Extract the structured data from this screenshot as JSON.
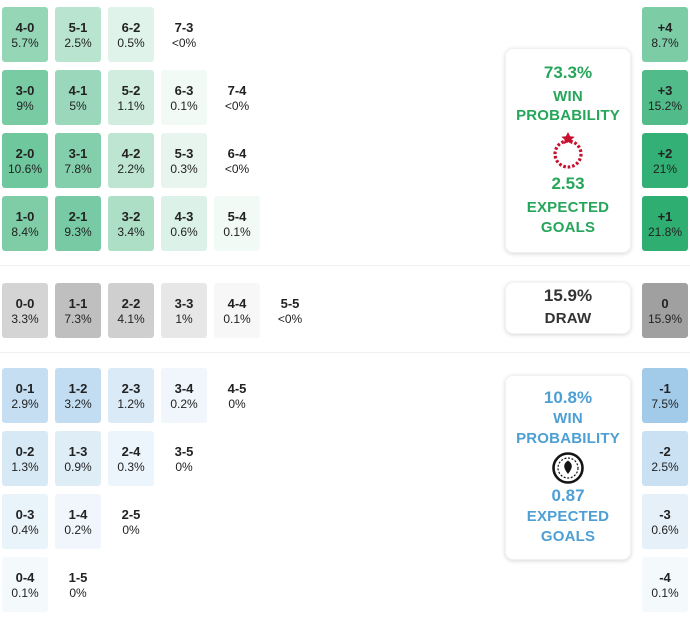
{
  "chart_data": {
    "type": "heatmap",
    "title": "Correct score probability matrix with win probability and expected goals",
    "colors": {
      "home_base": "#2fae72",
      "draw_base": "#a0a0a0",
      "away_base": "#8fc0e5",
      "home_text": "#26a65a",
      "away_text": "#4d9fd4",
      "draw_text": "#333333",
      "cell_text": "#222222"
    },
    "scales": {
      "home_max": 21.8,
      "draw_max": 15.9,
      "away_max": 10.8
    },
    "home_rows": [
      [
        {
          "score": "4-0",
          "pct": "5.7%",
          "value": 5.7
        },
        {
          "score": "5-1",
          "pct": "2.5%",
          "value": 2.5
        },
        {
          "score": "6-2",
          "pct": "0.5%",
          "value": 0.5
        },
        {
          "score": "7-3",
          "pct": "<0%",
          "value": 0
        }
      ],
      [
        {
          "score": "3-0",
          "pct": "9%",
          "value": 9
        },
        {
          "score": "4-1",
          "pct": "5%",
          "value": 5
        },
        {
          "score": "5-2",
          "pct": "1.1%",
          "value": 1.1
        },
        {
          "score": "6-3",
          "pct": "0.1%",
          "value": 0.1
        },
        {
          "score": "7-4",
          "pct": "<0%",
          "value": 0
        }
      ],
      [
        {
          "score": "2-0",
          "pct": "10.6%",
          "value": 10.6
        },
        {
          "score": "3-1",
          "pct": "7.8%",
          "value": 7.8
        },
        {
          "score": "4-2",
          "pct": "2.2%",
          "value": 2.2
        },
        {
          "score": "5-3",
          "pct": "0.3%",
          "value": 0.3
        },
        {
          "score": "6-4",
          "pct": "<0%",
          "value": 0
        }
      ],
      [
        {
          "score": "1-0",
          "pct": "8.4%",
          "value": 8.4
        },
        {
          "score": "2-1",
          "pct": "9.3%",
          "value": 9.3
        },
        {
          "score": "3-2",
          "pct": "3.4%",
          "value": 3.4
        },
        {
          "score": "4-3",
          "pct": "0.6%",
          "value": 0.6
        },
        {
          "score": "5-4",
          "pct": "0.1%",
          "value": 0.1
        }
      ]
    ],
    "draw_rows": [
      [
        {
          "score": "0-0",
          "pct": "3.3%",
          "value": 3.3
        },
        {
          "score": "1-1",
          "pct": "7.3%",
          "value": 7.3
        },
        {
          "score": "2-2",
          "pct": "4.1%",
          "value": 4.1
        },
        {
          "score": "3-3",
          "pct": "1%",
          "value": 1
        },
        {
          "score": "4-4",
          "pct": "0.1%",
          "value": 0.1
        },
        {
          "score": "5-5",
          "pct": "<0%",
          "value": 0
        }
      ]
    ],
    "away_rows": [
      [
        {
          "score": "0-1",
          "pct": "2.9%",
          "value": 2.9
        },
        {
          "score": "1-2",
          "pct": "3.2%",
          "value": 3.2
        },
        {
          "score": "2-3",
          "pct": "1.2%",
          "value": 1.2
        },
        {
          "score": "3-4",
          "pct": "0.2%",
          "value": 0.2
        },
        {
          "score": "4-5",
          "pct": "0%",
          "value": 0
        }
      ],
      [
        {
          "score": "0-2",
          "pct": "1.3%",
          "value": 1.3
        },
        {
          "score": "1-3",
          "pct": "0.9%",
          "value": 0.9
        },
        {
          "score": "2-4",
          "pct": "0.3%",
          "value": 0.3
        },
        {
          "score": "3-5",
          "pct": "0%",
          "value": 0
        }
      ],
      [
        {
          "score": "0-3",
          "pct": "0.4%",
          "value": 0.4
        },
        {
          "score": "1-4",
          "pct": "0.2%",
          "value": 0.2
        },
        {
          "score": "2-5",
          "pct": "0%",
          "value": 0
        }
      ],
      [
        {
          "score": "0-4",
          "pct": "0.1%",
          "value": 0.1
        },
        {
          "score": "1-5",
          "pct": "0%",
          "value": 0
        }
      ]
    ],
    "goal_diff": [
      {
        "diff": "+4",
        "pct": "8.7%",
        "value": 8.7,
        "group": "home"
      },
      {
        "diff": "+3",
        "pct": "15.2%",
        "value": 15.2,
        "group": "home"
      },
      {
        "diff": "+2",
        "pct": "21%",
        "value": 21,
        "group": "home"
      },
      {
        "diff": "+1",
        "pct": "21.8%",
        "value": 21.8,
        "group": "home"
      },
      {
        "diff": "0",
        "pct": "15.9%",
        "value": 15.9,
        "group": "draw"
      },
      {
        "diff": "-1",
        "pct": "7.5%",
        "value": 7.5,
        "group": "away"
      },
      {
        "diff": "-2",
        "pct": "2.5%",
        "value": 2.5,
        "group": "away"
      },
      {
        "diff": "-3",
        "pct": "0.6%",
        "value": 0.6,
        "group": "away"
      },
      {
        "diff": "-4",
        "pct": "0.1%",
        "value": 0.1,
        "group": "away"
      }
    ],
    "summary": {
      "home": {
        "probability": "73.3%",
        "label": "WIN PROBABILITY",
        "expected": "2.53",
        "expected_label": "EXPECTED GOALS",
        "logo_icon": "red-laurel-wreath-crest"
      },
      "draw": {
        "probability": "15.9%",
        "label": "DRAW"
      },
      "away": {
        "probability": "10.8%",
        "label": "WIN PROBABILITY",
        "expected": "0.87",
        "expected_label": "EXPECTED GOALS",
        "logo_icon": "black-circular-crest"
      }
    }
  }
}
